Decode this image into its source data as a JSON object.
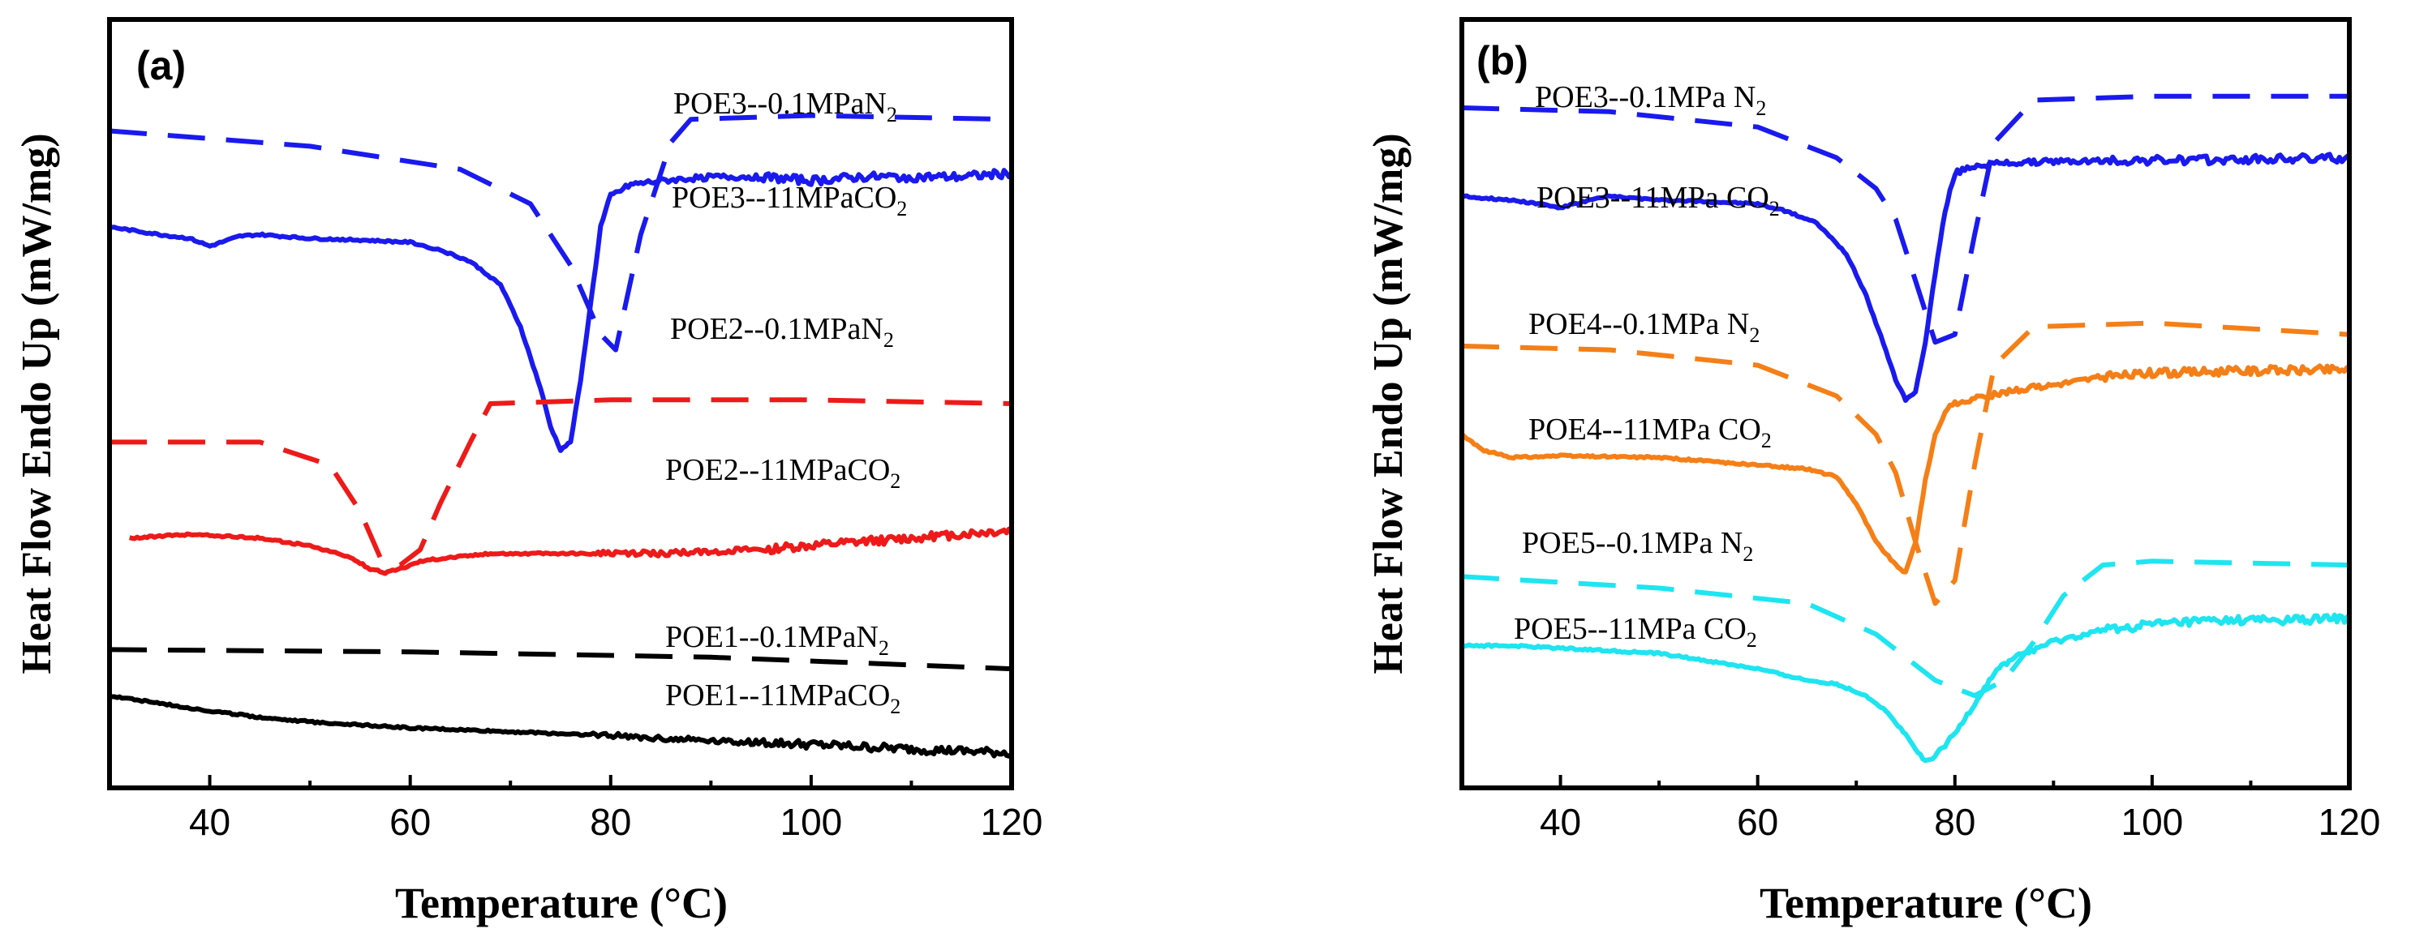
{
  "chart_data": [
    {
      "panel": "(a)",
      "type": "line",
      "xlabel": "Temperature (°C)",
      "ylabel": "Heat Flow Endo Up (mW/mg)",
      "xlim": [
        30,
        120
      ],
      "xticks": [
        40,
        60,
        80,
        100,
        120
      ],
      "y_ticks_shown": false,
      "series": [
        {
          "name": "POE3--0.1MPaN2",
          "label_main": "POE3--0.1MPaN",
          "label_sub": "2",
          "color": "#1a1aee",
          "style": "dashed",
          "x": [
            30,
            50,
            65,
            72,
            76,
            79,
            80.5,
            83,
            86,
            88,
            100,
            120
          ],
          "y": [
            85.5,
            83.5,
            80.5,
            76,
            68,
            59,
            57,
            72,
            84,
            87,
            87.5,
            87
          ]
        },
        {
          "name": "POE3--11MPaCO2",
          "label_main": "POE3--11MPaCO",
          "label_sub": "2",
          "color": "#1a1aee",
          "style": "solid",
          "x": [
            30,
            35,
            38,
            40,
            43,
            45,
            50,
            55,
            60,
            63,
            66,
            69,
            71,
            73,
            74,
            75,
            76,
            77,
            78,
            79,
            80,
            82,
            85,
            90,
            95,
            100,
            105,
            110,
            115,
            120
          ],
          "y": [
            73,
            72,
            71.5,
            70.5,
            71.8,
            72,
            71.5,
            71.3,
            71,
            70,
            68.5,
            65.5,
            60,
            52,
            47,
            44,
            45,
            53,
            63,
            73,
            77,
            78.5,
            79,
            79.5,
            79.5,
            79,
            79.5,
            79.5,
            79.5,
            80
          ]
        },
        {
          "name": "POE2--0.1MPaN2",
          "label_main": "POE2--0.1MPaN",
          "label_sub": "2",
          "color": "#ee1a1a",
          "style": "dashed",
          "x": [
            30,
            45,
            52,
            55,
            57,
            59,
            61,
            63,
            66,
            68,
            80,
            100,
            120
          ],
          "y": [
            45,
            45,
            42,
            36,
            30,
            29,
            31,
            37,
            45,
            50,
            50.5,
            50.5,
            50
          ]
        },
        {
          "name": "POE2--11MPaCO2",
          "label_main": "POE2--11MPaCO",
          "label_sub": "2",
          "color": "#ee1a1a",
          "style": "solid",
          "x": [
            32,
            38,
            45,
            50,
            54,
            56,
            57.5,
            59,
            61,
            64,
            68,
            75,
            85,
            95,
            105,
            110,
            115,
            120
          ],
          "y": [
            32.5,
            33,
            32.5,
            31.5,
            30,
            28.5,
            28,
            28.5,
            29.5,
            30,
            30.5,
            30.5,
            30.5,
            31,
            32,
            32.5,
            33,
            33.5
          ]
        },
        {
          "name": "POE1--0.1MPaN2",
          "label_main": "POE1--0.1MPaN",
          "label_sub": "2",
          "color": "#000000",
          "style": "dashed",
          "x": [
            30,
            60,
            90,
            120
          ],
          "y": [
            18,
            17.7,
            17,
            15.5
          ]
        },
        {
          "name": "POE1--11MPaCO2",
          "label_main": "POE1--11MPaCO",
          "label_sub": "2",
          "color": "#000000",
          "style": "solid",
          "x": [
            30,
            35,
            40,
            45,
            50,
            60,
            70,
            80,
            90,
            100,
            110,
            120
          ],
          "y": [
            12,
            11,
            10,
            9.2,
            8.6,
            7.8,
            7.3,
            6.8,
            6.2,
            5.6,
            5,
            4.5
          ]
        }
      ]
    },
    {
      "panel": "(b)",
      "type": "line",
      "xlabel": "Temperature (°C)",
      "ylabel": "Heat Flow Endo Up (mW/mg)",
      "xlim": [
        30,
        120
      ],
      "xticks": [
        40,
        60,
        80,
        100,
        120
      ],
      "y_ticks_shown": false,
      "series": [
        {
          "name": "POE3--0.1MPa N2",
          "label_main": "POE3--0.1MPa N",
          "label_sub": "2",
          "color": "#1a1aee",
          "style": "dashed",
          "x": [
            30,
            45,
            60,
            68,
            72,
            74,
            76,
            78,
            80,
            82,
            84,
            88,
            100,
            120
          ],
          "y": [
            88.5,
            88,
            86,
            82,
            78,
            74,
            66,
            58,
            59,
            72,
            84,
            89.5,
            90,
            90
          ]
        },
        {
          "name": "POE3--11MPa CO2",
          "label_main": "POE3--11MPa CO",
          "label_sub": "2",
          "color": "#1a1aee",
          "style": "solid",
          "x": [
            30,
            35,
            38,
            40,
            43,
            45,
            50,
            55,
            60,
            63,
            66,
            69,
            71,
            73,
            74,
            75,
            76,
            77,
            78,
            79,
            80,
            82,
            85,
            90,
            95,
            100,
            105,
            110,
            115,
            120
          ],
          "y": [
            77,
            76.5,
            76,
            75.5,
            76.5,
            77,
            76.5,
            76.3,
            76,
            75,
            73.5,
            69.5,
            64,
            57,
            53,
            50.5,
            51.5,
            58,
            67,
            75,
            80,
            81,
            81.3,
            81.5,
            81.6,
            81.7,
            81.7,
            81.8,
            81.9,
            82
          ]
        },
        {
          "name": "POE4--0.1MPa N2",
          "label_main": "POE4--0.1MPa N",
          "label_sub": "2",
          "color": "#f57f17",
          "style": "dashed",
          "x": [
            30,
            45,
            60,
            68,
            72,
            74,
            76,
            78,
            80,
            82,
            84,
            88,
            100,
            120
          ],
          "y": [
            57.5,
            57,
            55,
            51,
            46,
            41,
            32,
            24,
            27,
            42,
            55,
            60,
            60.5,
            59
          ]
        },
        {
          "name": "POE4--11MPa CO2",
          "label_main": "POE4--11MPa CO",
          "label_sub": "2",
          "color": "#f57f17",
          "style": "solid",
          "x": [
            30,
            32,
            35,
            40,
            50,
            60,
            65,
            68,
            70,
            72,
            74,
            75,
            76,
            77,
            78,
            79,
            80,
            85,
            90,
            95,
            100,
            105,
            110,
            115,
            120
          ],
          "y": [
            46,
            44,
            43,
            43.2,
            43,
            42,
            41.5,
            40.5,
            37,
            32,
            29,
            28,
            32,
            40,
            46,
            49,
            50,
            51.5,
            52.5,
            53.5,
            54,
            54.2,
            54.3,
            54.4,
            54.5
          ]
        },
        {
          "name": "POE5--0.1MPa N2",
          "label_main": "POE5--0.1MPa N",
          "label_sub": "2",
          "color": "#1ee5f0",
          "style": "dashed",
          "x": [
            30,
            50,
            65,
            72,
            78,
            82,
            85,
            88,
            91,
            95,
            100,
            120
          ],
          "y": [
            27.5,
            26,
            24,
            20,
            14,
            12,
            14,
            19,
            25,
            29,
            29.5,
            29
          ]
        },
        {
          "name": "POE5--11MPa CO2",
          "label_main": "POE5--11MPa CO",
          "label_sub": "2",
          "color": "#1ee5f0",
          "style": "solid",
          "x": [
            30,
            35,
            40,
            50,
            60,
            65,
            68,
            71,
            73,
            75,
            76,
            77,
            78,
            79,
            80,
            82,
            84,
            86,
            90,
            95,
            100,
            105,
            110,
            115,
            120
          ],
          "y": [
            18.5,
            18.5,
            18.2,
            17.5,
            15.5,
            14,
            13.5,
            12,
            10,
            7,
            5,
            3.5,
            4,
            5.5,
            7,
            11,
            15,
            17,
            19,
            20.5,
            21.3,
            21.7,
            21.8,
            21.9,
            22
          ]
        }
      ]
    }
  ]
}
